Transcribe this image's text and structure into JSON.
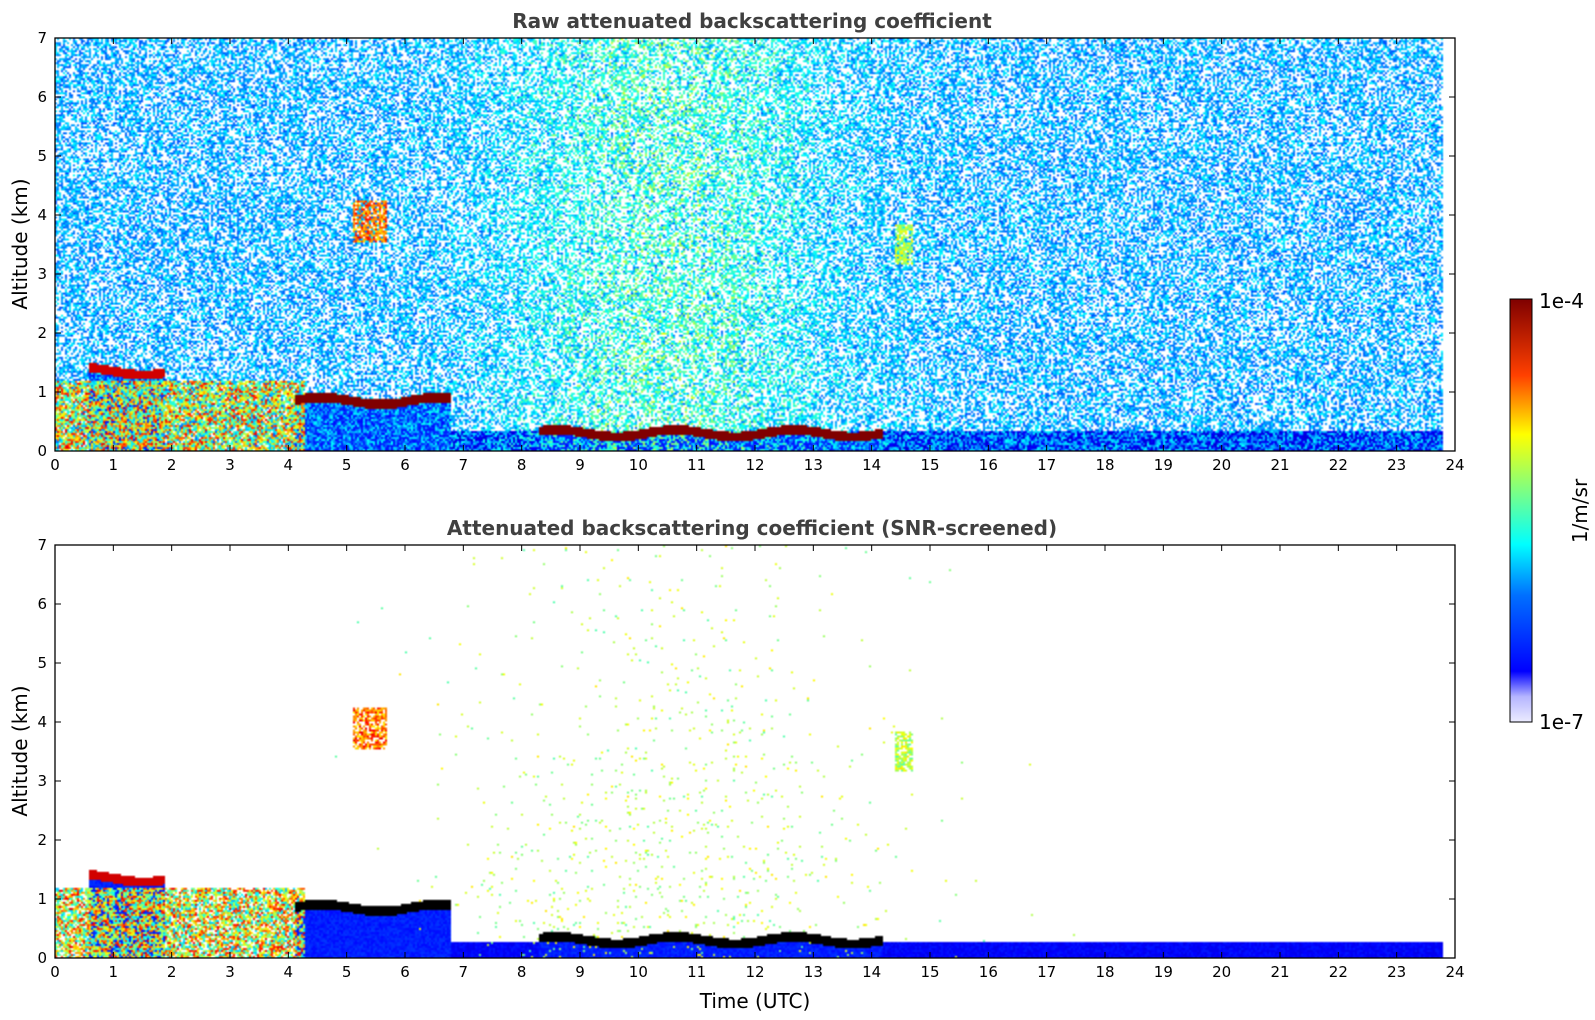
{
  "chart_data": [
    {
      "type": "heatmap",
      "title": "Raw attenuated backscattering coefficient",
      "xlabel": "",
      "ylabel": "Altitude (km)",
      "xlim": [
        0,
        24
      ],
      "ylim": [
        0,
        7
      ],
      "x_ticks": [
        "0",
        "1",
        "2",
        "3",
        "4",
        "5",
        "6",
        "7",
        "8",
        "9",
        "10",
        "11",
        "12",
        "13",
        "14",
        "15",
        "16",
        "17",
        "18",
        "19",
        "20",
        "21",
        "22",
        "23",
        "24"
      ],
      "y_ticks": [
        "0",
        "1",
        "2",
        "3",
        "4",
        "5",
        "6",
        "7"
      ],
      "features": [
        {
          "kind": "boundary_layer_aerosol",
          "t_start": 4.5,
          "t_end": 23.8,
          "alt_top_km": 0.35,
          "level": 0.08
        },
        {
          "kind": "cloud_layer",
          "t_start": 8.3,
          "t_end": 14.2,
          "alt_km": 0.3,
          "level": 1.0
        },
        {
          "kind": "cloud_layer",
          "t_start": 4.1,
          "t_end": 6.8,
          "alt_km": 0.85,
          "level": 1.0
        },
        {
          "kind": "cloud_layer",
          "t_start": 0.6,
          "t_end": 1.9,
          "alt_km": 1.35,
          "level": 0.92
        },
        {
          "kind": "cloud_patch",
          "t_start": 5.1,
          "t_end": 5.7,
          "alt_km": 3.9,
          "level": 0.9
        },
        {
          "kind": "cloud_patch",
          "t_start": 14.4,
          "t_end": 14.7,
          "alt_km": 3.5,
          "level": 0.65
        },
        {
          "kind": "low_aerosol_mix",
          "t_start": 0.0,
          "t_end": 4.3,
          "alt_top_km": 1.2,
          "level": 0.6
        }
      ]
    },
    {
      "type": "heatmap",
      "title": "Attenuated backscattering coefficient (SNR-screened)",
      "xlabel": "Time (UTC)",
      "ylabel": "Altitude (km)",
      "xlim": [
        0,
        24
      ],
      "ylim": [
        0,
        7
      ],
      "x_ticks": [
        "0",
        "1",
        "2",
        "3",
        "4",
        "5",
        "6",
        "7",
        "8",
        "9",
        "10",
        "11",
        "12",
        "13",
        "14",
        "15",
        "16",
        "17",
        "18",
        "19",
        "20",
        "21",
        "22",
        "23",
        "24"
      ],
      "y_ticks": [
        "0",
        "1",
        "2",
        "3",
        "4",
        "5",
        "6",
        "7"
      ],
      "features": [
        {
          "kind": "boundary_layer_aerosol",
          "t_start": 4.5,
          "t_end": 23.8,
          "alt_top_km": 0.28,
          "level": 0.1
        },
        {
          "kind": "cloud_layer",
          "t_start": 8.3,
          "t_end": 14.2,
          "alt_km": 0.3,
          "level": 1.0
        },
        {
          "kind": "cloud_layer",
          "t_start": 4.1,
          "t_end": 6.8,
          "alt_km": 0.85,
          "level": 1.0
        },
        {
          "kind": "cloud_layer",
          "t_start": 0.6,
          "t_end": 1.9,
          "alt_km": 1.35,
          "level": 0.92
        },
        {
          "kind": "cloud_patch",
          "t_start": 5.1,
          "t_end": 5.7,
          "alt_km": 3.9,
          "level": 0.9
        },
        {
          "kind": "cloud_patch",
          "t_start": 14.4,
          "t_end": 14.7,
          "alt_km": 3.5,
          "level": 0.65
        },
        {
          "kind": "low_aerosol_mix",
          "t_start": 0.0,
          "t_end": 4.3,
          "alt_top_km": 1.2,
          "level": 0.6
        }
      ]
    }
  ],
  "colorbar": {
    "label": "1/m/sr",
    "max_label": "1e-4",
    "min_label": "1e-7",
    "scale": "log",
    "colormap": "jet"
  },
  "colors": {
    "title": "#404040",
    "axis": "#000000",
    "background": "#ffffff"
  }
}
